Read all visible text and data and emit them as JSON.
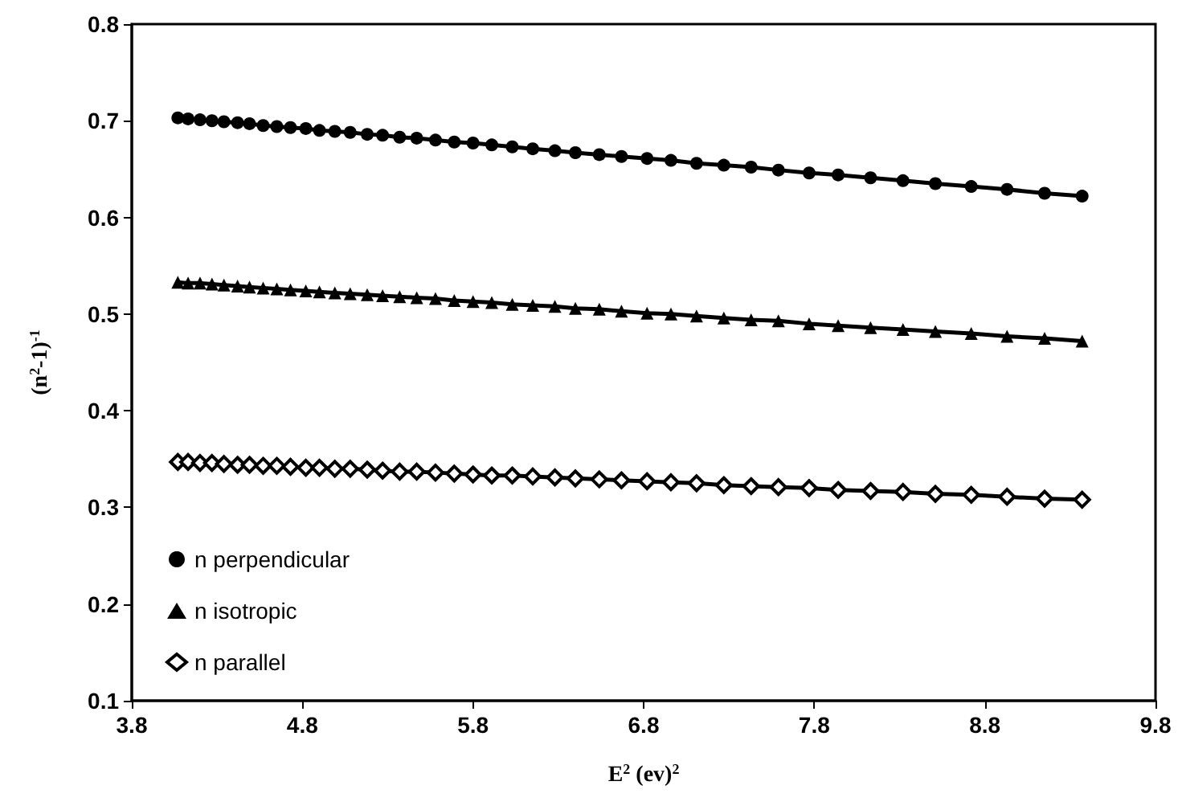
{
  "chart_data": {
    "type": "line",
    "xlabel": "E$^{2}$ (ev)$^{2}$",
    "ylabel": "(n$^{2}$-1)$^{-1}$",
    "x": [
      4.07,
      4.13,
      4.2,
      4.27,
      4.34,
      4.42,
      4.49,
      4.57,
      4.65,
      4.73,
      4.82,
      4.9,
      4.99,
      5.08,
      5.18,
      5.27,
      5.37,
      5.47,
      5.58,
      5.69,
      5.8,
      5.91,
      6.03,
      6.15,
      6.28,
      6.4,
      6.54,
      6.67,
      6.82,
      6.96,
      7.11,
      7.27,
      7.43,
      7.59,
      7.77,
      7.94,
      8.13,
      8.32,
      8.51,
      8.72,
      8.93,
      9.15,
      9.37
    ],
    "series": [
      {
        "name": "n perpendicular",
        "color": "#000000",
        "marker": "circle",
        "values": [
          0.703,
          0.702,
          0.701,
          0.7,
          0.699,
          0.698,
          0.697,
          0.695,
          0.694,
          0.693,
          0.692,
          0.69,
          0.689,
          0.688,
          0.686,
          0.685,
          0.683,
          0.682,
          0.68,
          0.678,
          0.677,
          0.675,
          0.673,
          0.671,
          0.669,
          0.667,
          0.665,
          0.663,
          0.661,
          0.659,
          0.656,
          0.654,
          0.652,
          0.649,
          0.646,
          0.644,
          0.641,
          0.638,
          0.635,
          0.632,
          0.629,
          0.625,
          0.622
        ]
      },
      {
        "name": "n isotropic",
        "color": "#000000",
        "marker": "triangle",
        "values": [
          0.533,
          0.532,
          0.532,
          0.531,
          0.53,
          0.529,
          0.528,
          0.527,
          0.526,
          0.525,
          0.524,
          0.523,
          0.522,
          0.521,
          0.52,
          0.519,
          0.518,
          0.517,
          0.516,
          0.514,
          0.513,
          0.512,
          0.51,
          0.509,
          0.508,
          0.506,
          0.505,
          0.503,
          0.501,
          0.5,
          0.498,
          0.496,
          0.494,
          0.493,
          0.49,
          0.488,
          0.486,
          0.484,
          0.482,
          0.48,
          0.477,
          0.475,
          0.472
        ]
      },
      {
        "name": "n parallel",
        "color": "#000000",
        "marker": "diamond",
        "values": [
          0.347,
          0.347,
          0.346,
          0.346,
          0.345,
          0.344,
          0.344,
          0.343,
          0.343,
          0.342,
          0.341,
          0.341,
          0.34,
          0.34,
          0.339,
          0.338,
          0.337,
          0.337,
          0.336,
          0.335,
          0.334,
          0.333,
          0.333,
          0.332,
          0.331,
          0.33,
          0.329,
          0.328,
          0.327,
          0.326,
          0.325,
          0.323,
          0.322,
          0.321,
          0.32,
          0.318,
          0.317,
          0.316,
          0.314,
          0.313,
          0.311,
          0.309,
          0.308
        ]
      }
    ],
    "xlim": [
      3.8,
      9.8
    ],
    "xticks": [
      3.8,
      4.8,
      5.8,
      6.8,
      7.8,
      8.8,
      9.8
    ],
    "ylim": [
      0.1,
      0.8
    ],
    "yticks": [
      0.1,
      0.2,
      0.3,
      0.4,
      0.5,
      0.6,
      0.7,
      0.8
    ],
    "grid": false,
    "legend": "bottom left",
    "line_style": "solid"
  }
}
